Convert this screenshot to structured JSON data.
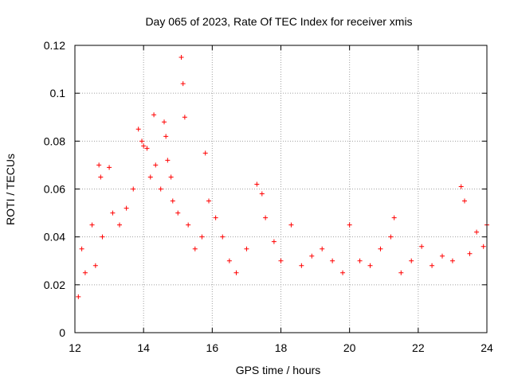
{
  "chart_data": {
    "type": "scatter",
    "title": "Day 065 of 2023, Rate Of TEC Index for receiver xmis",
    "xlabel": "GPS time / hours",
    "ylabel": "ROTI / TECUs",
    "xlim": [
      12,
      24
    ],
    "ylim": [
      0,
      0.12
    ],
    "x_ticks": [
      "12",
      "14",
      "16",
      "18",
      "20",
      "22",
      "24"
    ],
    "y_ticks": [
      "0",
      "0.02",
      "0.04",
      "0.06",
      "0.08",
      "0.1",
      "0.12"
    ],
    "grid": true,
    "legend": "none",
    "marker": "+",
    "color": "#ff0000",
    "series": [
      {
        "x": [
          12.1,
          12.2,
          12.3,
          12.5,
          12.6,
          12.7,
          12.75,
          12.8,
          13.0,
          13.1,
          13.3,
          13.5,
          13.7,
          13.85,
          13.95,
          14.0,
          14.1,
          14.2,
          14.3,
          14.35,
          14.5,
          14.6,
          14.65,
          14.7,
          14.8,
          14.85,
          15.0,
          15.1,
          15.15,
          15.2,
          15.3,
          15.5,
          15.7,
          15.8,
          15.9,
          16.1,
          16.3,
          16.5,
          16.7,
          17.0,
          17.3,
          17.45,
          17.55,
          17.8,
          18.0,
          18.3,
          18.6,
          18.9,
          19.2,
          19.5,
          19.8,
          20.0,
          20.3,
          20.6,
          20.9,
          21.2,
          21.3,
          21.5,
          21.8,
          22.1,
          22.4,
          22.7,
          23.0,
          23.25,
          23.35,
          23.5,
          23.7,
          23.9,
          24.0
        ],
        "y": [
          0.015,
          0.035,
          0.025,
          0.045,
          0.028,
          0.07,
          0.065,
          0.04,
          0.069,
          0.05,
          0.045,
          0.052,
          0.06,
          0.085,
          0.08,
          0.078,
          0.077,
          0.065,
          0.091,
          0.07,
          0.06,
          0.088,
          0.082,
          0.072,
          0.065,
          0.055,
          0.05,
          0.115,
          0.104,
          0.09,
          0.045,
          0.035,
          0.04,
          0.075,
          0.055,
          0.048,
          0.04,
          0.03,
          0.025,
          0.035,
          0.062,
          0.058,
          0.048,
          0.038,
          0.03,
          0.045,
          0.028,
          0.032,
          0.035,
          0.03,
          0.025,
          0.045,
          0.03,
          0.028,
          0.035,
          0.04,
          0.048,
          0.025,
          0.03,
          0.036,
          0.028,
          0.032,
          0.03,
          0.061,
          0.055,
          0.033,
          0.042,
          0.036,
          0.045
        ]
      }
    ]
  }
}
